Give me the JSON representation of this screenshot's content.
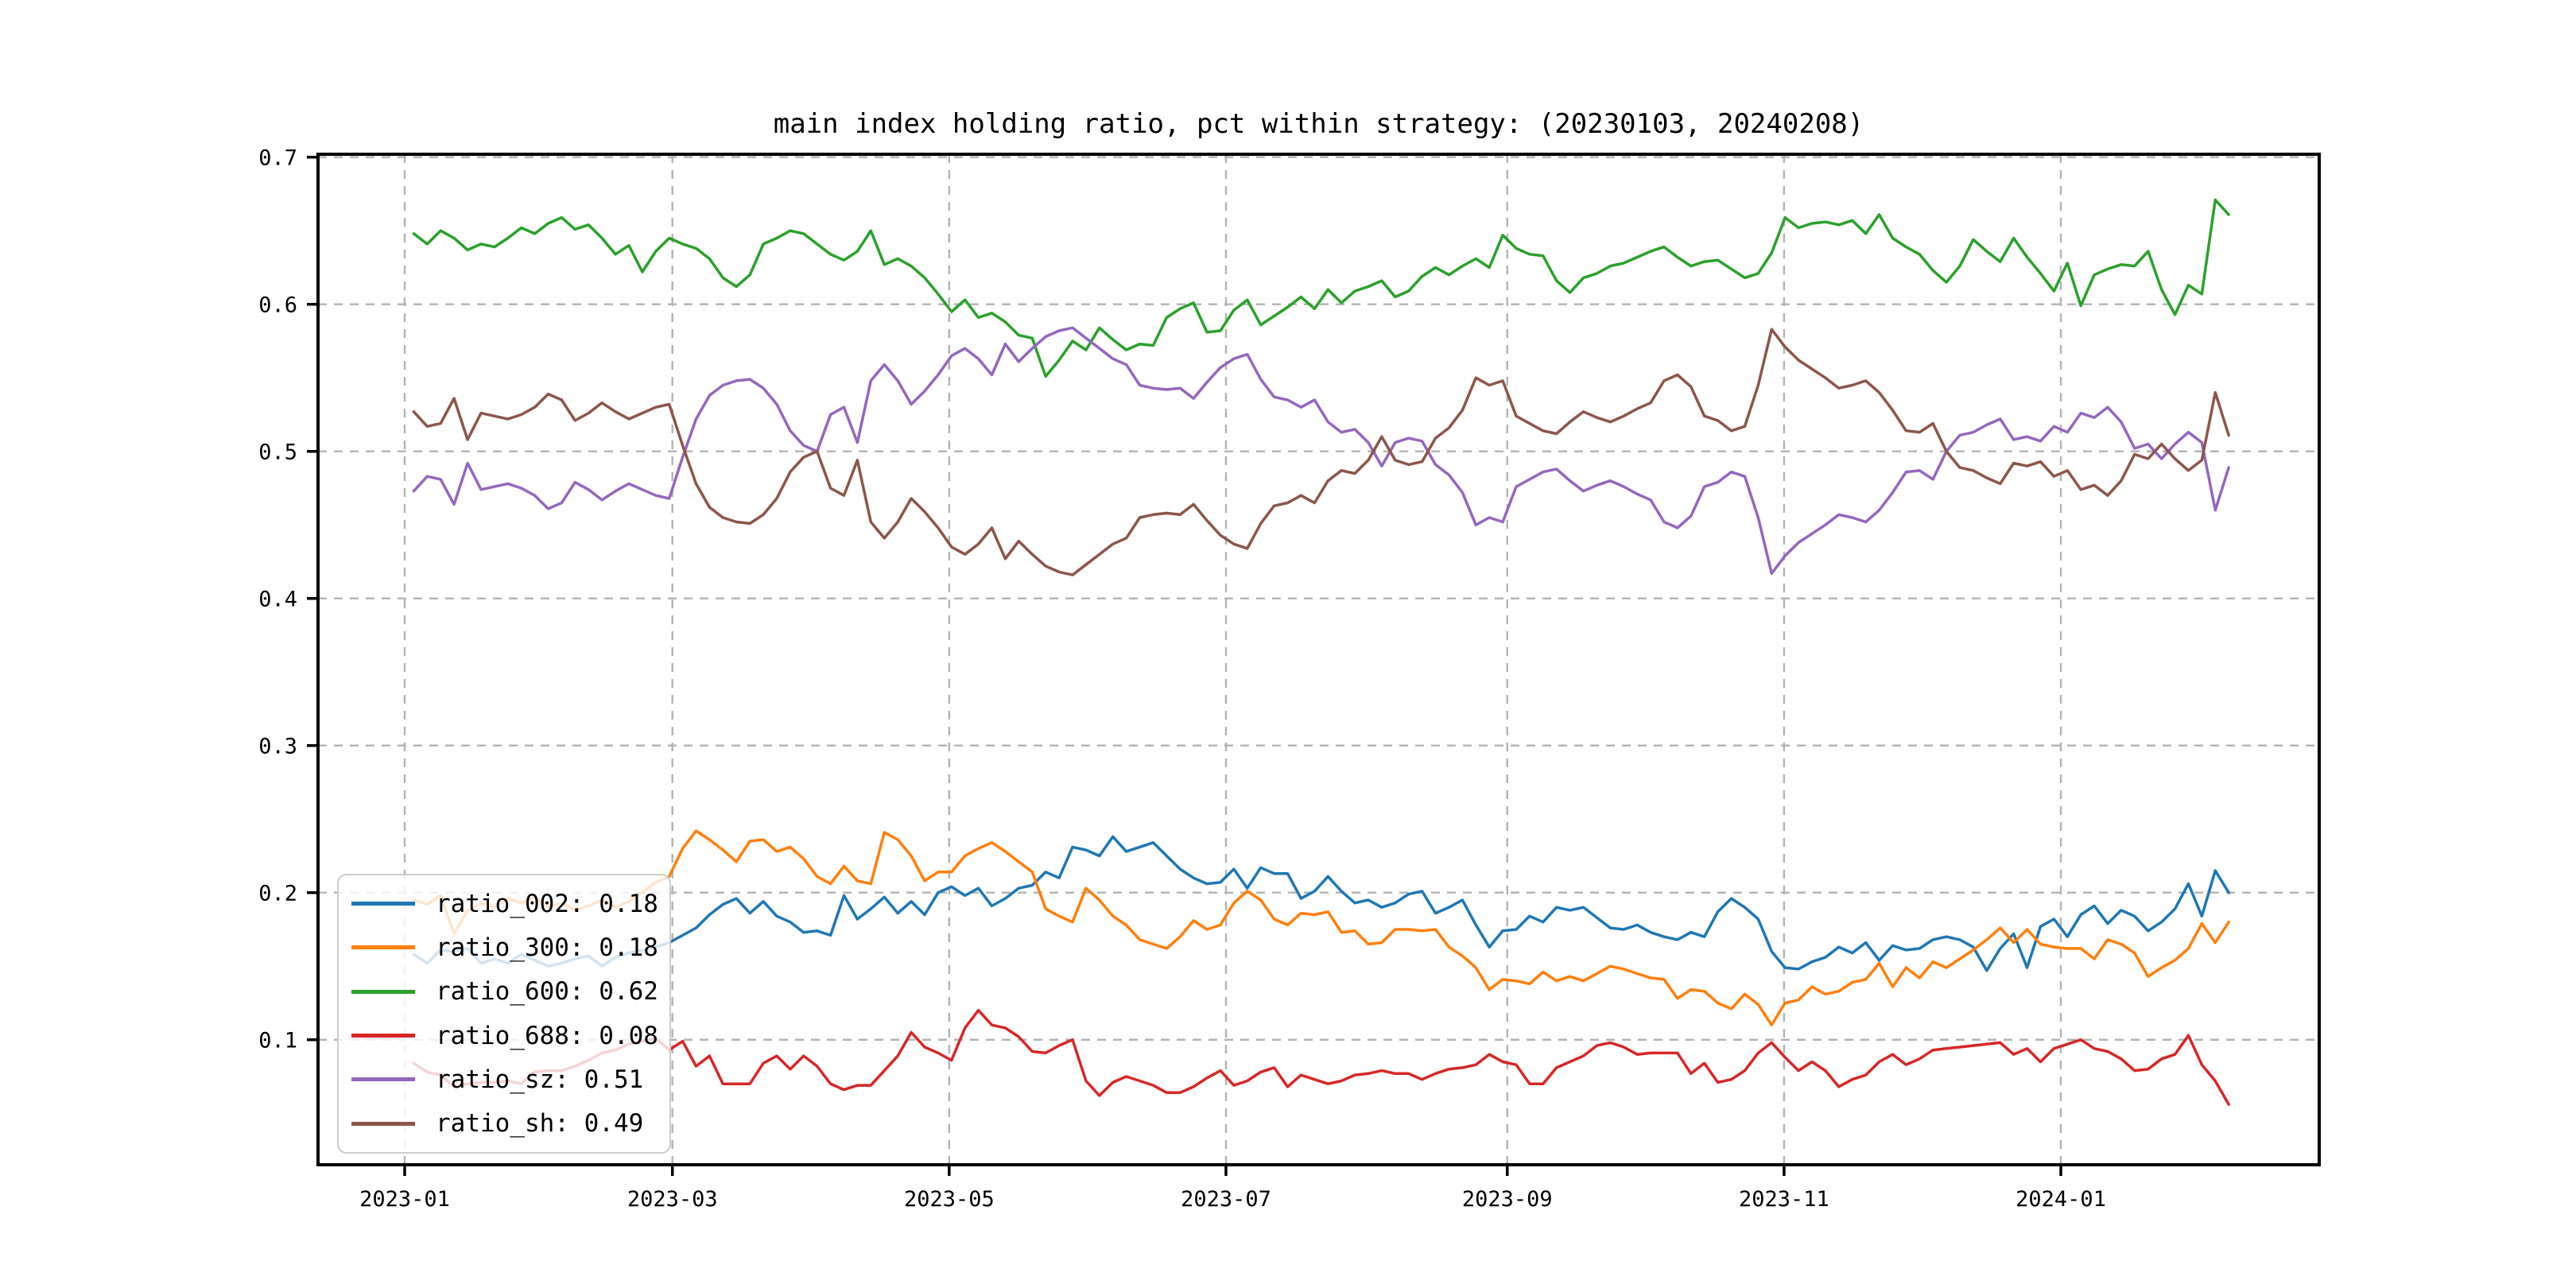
{
  "figure": {
    "background_color": "#ffffff"
  },
  "chart_data": {
    "type": "line",
    "title": "main index holding ratio, pct within strategy: (20230103, 20240208)",
    "xlabel": "",
    "ylabel": "",
    "grid": true,
    "legend_position": "lower left",
    "x_axis": {
      "start_day": 2,
      "end_day": 402,
      "ticks": [
        {
          "day": 0,
          "label": "2023-01"
        },
        {
          "day": 59,
          "label": "2023-03"
        },
        {
          "day": 120,
          "label": "2023-05"
        },
        {
          "day": 181,
          "label": "2023-07"
        },
        {
          "day": 243,
          "label": "2023-09"
        },
        {
          "day": 304,
          "label": "2023-11"
        },
        {
          "day": 365,
          "label": "2024-01"
        }
      ]
    },
    "y_axis": {
      "range": [
        0.015,
        0.702
      ],
      "ticks": [
        {
          "value": 0.1,
          "label": "0.1"
        },
        {
          "value": 0.2,
          "label": "0.2"
        },
        {
          "value": 0.3,
          "label": "0.3"
        },
        {
          "value": 0.4,
          "label": "0.4"
        },
        {
          "value": 0.5,
          "label": "0.5"
        },
        {
          "value": 0.6,
          "label": "0.6"
        },
        {
          "value": 0.7,
          "label": "0.7"
        }
      ]
    },
    "series": [
      {
        "name": "ratio_002",
        "legend_label": "ratio_002: 0.18",
        "color": "#1f77b4",
        "values": [
          0.158,
          0.152,
          0.161,
          0.16,
          0.162,
          0.152,
          0.155,
          0.152,
          0.158,
          0.154,
          0.15,
          0.152,
          0.155,
          0.157,
          0.15,
          0.156,
          0.159,
          0.161,
          0.163,
          0.166,
          0.171,
          0.176,
          0.185,
          0.192,
          0.196,
          0.186,
          0.194,
          0.184,
          0.18,
          0.173,
          0.174,
          0.171,
          0.198,
          0.182,
          0.189,
          0.197,
          0.186,
          0.194,
          0.185,
          0.2,
          0.204,
          0.198,
          0.203,
          0.191,
          0.196,
          0.203,
          0.205,
          0.214,
          0.21,
          0.231,
          0.229,
          0.225,
          0.238,
          0.228,
          0.231,
          0.234,
          0.225,
          0.216,
          0.21,
          0.206,
          0.207,
          0.216,
          0.203,
          0.217,
          0.213,
          0.213,
          0.196,
          0.201,
          0.211,
          0.201,
          0.193,
          0.195,
          0.19,
          0.193,
          0.199,
          0.201,
          0.186,
          0.19,
          0.195,
          0.178,
          0.163,
          0.174,
          0.175,
          0.184,
          0.18,
          0.19,
          0.188,
          0.19,
          0.183,
          0.176,
          0.175,
          0.178,
          0.173,
          0.17,
          0.168,
          0.173,
          0.17,
          0.187,
          0.196,
          0.19,
          0.182,
          0.16,
          0.149,
          0.148,
          0.153,
          0.156,
          0.163,
          0.159,
          0.166,
          0.154,
          0.164,
          0.161,
          0.162,
          0.168,
          0.17,
          0.168,
          0.163,
          0.147,
          0.162,
          0.172,
          0.149,
          0.177,
          0.182,
          0.17,
          0.185,
          0.191,
          0.179,
          0.188,
          0.184,
          0.174,
          0.18,
          0.189,
          0.206,
          0.184,
          0.215,
          0.2
        ]
      },
      {
        "name": "ratio_300",
        "legend_label": "ratio_300: 0.18",
        "color": "#ff7f0e",
        "values": [
          0.195,
          0.192,
          0.198,
          0.172,
          0.188,
          0.193,
          0.19,
          0.196,
          0.193,
          0.197,
          0.19,
          0.193,
          0.188,
          0.191,
          0.195,
          0.19,
          0.194,
          0.2,
          0.207,
          0.211,
          0.23,
          0.242,
          0.236,
          0.229,
          0.221,
          0.235,
          0.236,
          0.228,
          0.231,
          0.223,
          0.211,
          0.206,
          0.218,
          0.208,
          0.206,
          0.241,
          0.236,
          0.225,
          0.208,
          0.214,
          0.214,
          0.225,
          0.23,
          0.234,
          0.228,
          0.221,
          0.214,
          0.189,
          0.184,
          0.18,
          0.203,
          0.195,
          0.184,
          0.178,
          0.168,
          0.165,
          0.162,
          0.17,
          0.181,
          0.175,
          0.178,
          0.193,
          0.201,
          0.195,
          0.182,
          0.178,
          0.186,
          0.185,
          0.187,
          0.173,
          0.174,
          0.165,
          0.166,
          0.175,
          0.175,
          0.174,
          0.175,
          0.163,
          0.157,
          0.149,
          0.134,
          0.141,
          0.14,
          0.138,
          0.146,
          0.14,
          0.143,
          0.14,
          0.145,
          0.15,
          0.148,
          0.145,
          0.142,
          0.141,
          0.128,
          0.134,
          0.133,
          0.125,
          0.121,
          0.131,
          0.124,
          0.11,
          0.125,
          0.127,
          0.136,
          0.131,
          0.133,
          0.139,
          0.141,
          0.152,
          0.136,
          0.149,
          0.142,
          0.153,
          0.149,
          0.155,
          0.161,
          0.168,
          0.176,
          0.166,
          0.175,
          0.165,
          0.163,
          0.162,
          0.162,
          0.155,
          0.168,
          0.165,
          0.159,
          0.143,
          0.149,
          0.154,
          0.162,
          0.179,
          0.166,
          0.18
        ]
      },
      {
        "name": "ratio_600",
        "legend_label": "ratio_600: 0.62",
        "color": "#2ca02c",
        "values": [
          0.648,
          0.641,
          0.65,
          0.645,
          0.637,
          0.641,
          0.639,
          0.645,
          0.652,
          0.648,
          0.655,
          0.659,
          0.651,
          0.654,
          0.645,
          0.634,
          0.64,
          0.622,
          0.636,
          0.645,
          0.641,
          0.638,
          0.631,
          0.618,
          0.612,
          0.62,
          0.641,
          0.645,
          0.65,
          0.648,
          0.641,
          0.634,
          0.63,
          0.636,
          0.65,
          0.627,
          0.631,
          0.626,
          0.618,
          0.607,
          0.595,
          0.603,
          0.591,
          0.594,
          0.588,
          0.579,
          0.577,
          0.551,
          0.562,
          0.575,
          0.569,
          0.584,
          0.576,
          0.569,
          0.573,
          0.572,
          0.591,
          0.597,
          0.601,
          0.581,
          0.582,
          0.596,
          0.603,
          0.586,
          0.592,
          0.598,
          0.605,
          0.597,
          0.61,
          0.601,
          0.609,
          0.612,
          0.616,
          0.605,
          0.609,
          0.619,
          0.625,
          0.62,
          0.626,
          0.631,
          0.625,
          0.647,
          0.638,
          0.634,
          0.633,
          0.616,
          0.608,
          0.618,
          0.621,
          0.626,
          0.628,
          0.632,
          0.636,
          0.639,
          0.632,
          0.626,
          0.629,
          0.63,
          0.624,
          0.618,
          0.621,
          0.635,
          0.659,
          0.652,
          0.655,
          0.656,
          0.654,
          0.657,
          0.648,
          0.661,
          0.645,
          0.639,
          0.634,
          0.623,
          0.615,
          0.626,
          0.644,
          0.636,
          0.629,
          0.645,
          0.632,
          0.621,
          0.609,
          0.628,
          0.599,
          0.62,
          0.624,
          0.627,
          0.626,
          0.636,
          0.61,
          0.593,
          0.613,
          0.607,
          0.671,
          0.661
        ]
      },
      {
        "name": "ratio_688",
        "legend_label": "ratio_688: 0.08",
        "color": "#d62728",
        "values": [
          0.084,
          0.078,
          0.076,
          0.068,
          0.07,
          0.071,
          0.071,
          0.072,
          0.07,
          0.078,
          0.079,
          0.079,
          0.082,
          0.086,
          0.091,
          0.093,
          0.097,
          0.099,
          0.101,
          0.093,
          0.099,
          0.082,
          0.089,
          0.07,
          0.07,
          0.07,
          0.084,
          0.089,
          0.08,
          0.089,
          0.082,
          0.07,
          0.066,
          0.069,
          0.069,
          0.079,
          0.089,
          0.105,
          0.095,
          0.091,
          0.086,
          0.108,
          0.12,
          0.11,
          0.108,
          0.102,
          0.092,
          0.091,
          0.096,
          0.1,
          0.072,
          0.062,
          0.071,
          0.075,
          0.072,
          0.069,
          0.064,
          0.064,
          0.068,
          0.074,
          0.079,
          0.069,
          0.072,
          0.078,
          0.081,
          0.068,
          0.076,
          0.073,
          0.07,
          0.072,
          0.076,
          0.077,
          0.079,
          0.077,
          0.077,
          0.073,
          0.077,
          0.08,
          0.081,
          0.083,
          0.09,
          0.085,
          0.083,
          0.07,
          0.07,
          0.081,
          0.085,
          0.089,
          0.096,
          0.098,
          0.095,
          0.09,
          0.091,
          0.091,
          0.091,
          0.077,
          0.084,
          0.071,
          0.073,
          0.079,
          0.091,
          0.098,
          0.088,
          0.079,
          0.085,
          0.079,
          0.068,
          0.073,
          0.076,
          0.085,
          0.09,
          0.083,
          0.087,
          0.093,
          0.094,
          0.095,
          0.096,
          0.097,
          0.098,
          0.09,
          0.094,
          0.085,
          0.094,
          0.097,
          0.1,
          0.094,
          0.092,
          0.087,
          0.079,
          0.08,
          0.087,
          0.09,
          0.103,
          0.083,
          0.072,
          0.056
        ]
      },
      {
        "name": "ratio_sz",
        "legend_label": "ratio_sz: 0.51",
        "color": "#9467bd",
        "values": [
          0.473,
          0.483,
          0.481,
          0.464,
          0.492,
          0.474,
          0.476,
          0.478,
          0.475,
          0.47,
          0.461,
          0.465,
          0.479,
          0.474,
          0.467,
          0.473,
          0.478,
          0.474,
          0.47,
          0.468,
          0.496,
          0.522,
          0.538,
          0.545,
          0.548,
          0.549,
          0.543,
          0.532,
          0.514,
          0.504,
          0.5,
          0.525,
          0.53,
          0.506,
          0.548,
          0.559,
          0.548,
          0.532,
          0.541,
          0.552,
          0.565,
          0.57,
          0.563,
          0.552,
          0.573,
          0.561,
          0.57,
          0.578,
          0.582,
          0.584,
          0.577,
          0.57,
          0.563,
          0.559,
          0.545,
          0.543,
          0.542,
          0.543,
          0.536,
          0.547,
          0.557,
          0.563,
          0.566,
          0.549,
          0.537,
          0.535,
          0.53,
          0.535,
          0.52,
          0.513,
          0.515,
          0.506,
          0.49,
          0.506,
          0.509,
          0.507,
          0.491,
          0.484,
          0.472,
          0.45,
          0.455,
          0.452,
          0.476,
          0.481,
          0.486,
          0.488,
          0.48,
          0.473,
          0.477,
          0.48,
          0.476,
          0.471,
          0.467,
          0.452,
          0.448,
          0.456,
          0.476,
          0.479,
          0.486,
          0.483,
          0.455,
          0.417,
          0.429,
          0.438,
          0.444,
          0.45,
          0.457,
          0.455,
          0.452,
          0.46,
          0.472,
          0.486,
          0.487,
          0.481,
          0.5,
          0.511,
          0.513,
          0.518,
          0.522,
          0.508,
          0.51,
          0.507,
          0.517,
          0.513,
          0.526,
          0.523,
          0.53,
          0.52,
          0.502,
          0.505,
          0.495,
          0.505,
          0.513,
          0.506,
          0.46,
          0.489
        ]
      },
      {
        "name": "ratio_sh",
        "legend_label": "ratio_sh: 0.49",
        "color": "#8c564b",
        "values": [
          0.527,
          0.517,
          0.519,
          0.536,
          0.508,
          0.526,
          0.524,
          0.522,
          0.525,
          0.53,
          0.539,
          0.535,
          0.521,
          0.526,
          0.533,
          0.527,
          0.522,
          0.526,
          0.53,
          0.532,
          0.504,
          0.478,
          0.462,
          0.455,
          0.452,
          0.451,
          0.457,
          0.468,
          0.486,
          0.496,
          0.5,
          0.475,
          0.47,
          0.494,
          0.452,
          0.441,
          0.452,
          0.468,
          0.459,
          0.448,
          0.435,
          0.43,
          0.437,
          0.448,
          0.427,
          0.439,
          0.43,
          0.422,
          0.418,
          0.416,
          0.423,
          0.43,
          0.437,
          0.441,
          0.455,
          0.457,
          0.458,
          0.457,
          0.464,
          0.453,
          0.443,
          0.437,
          0.434,
          0.451,
          0.463,
          0.465,
          0.47,
          0.465,
          0.48,
          0.487,
          0.485,
          0.494,
          0.51,
          0.494,
          0.491,
          0.493,
          0.509,
          0.516,
          0.528,
          0.55,
          0.545,
          0.548,
          0.524,
          0.519,
          0.514,
          0.512,
          0.52,
          0.527,
          0.523,
          0.52,
          0.524,
          0.529,
          0.533,
          0.548,
          0.552,
          0.544,
          0.524,
          0.521,
          0.514,
          0.517,
          0.545,
          0.583,
          0.571,
          0.562,
          0.556,
          0.55,
          0.543,
          0.545,
          0.548,
          0.54,
          0.528,
          0.514,
          0.513,
          0.519,
          0.5,
          0.489,
          0.487,
          0.482,
          0.478,
          0.492,
          0.49,
          0.493,
          0.483,
          0.487,
          0.474,
          0.477,
          0.47,
          0.48,
          0.498,
          0.495,
          0.505,
          0.495,
          0.487,
          0.494,
          0.54,
          0.511
        ]
      }
    ]
  }
}
